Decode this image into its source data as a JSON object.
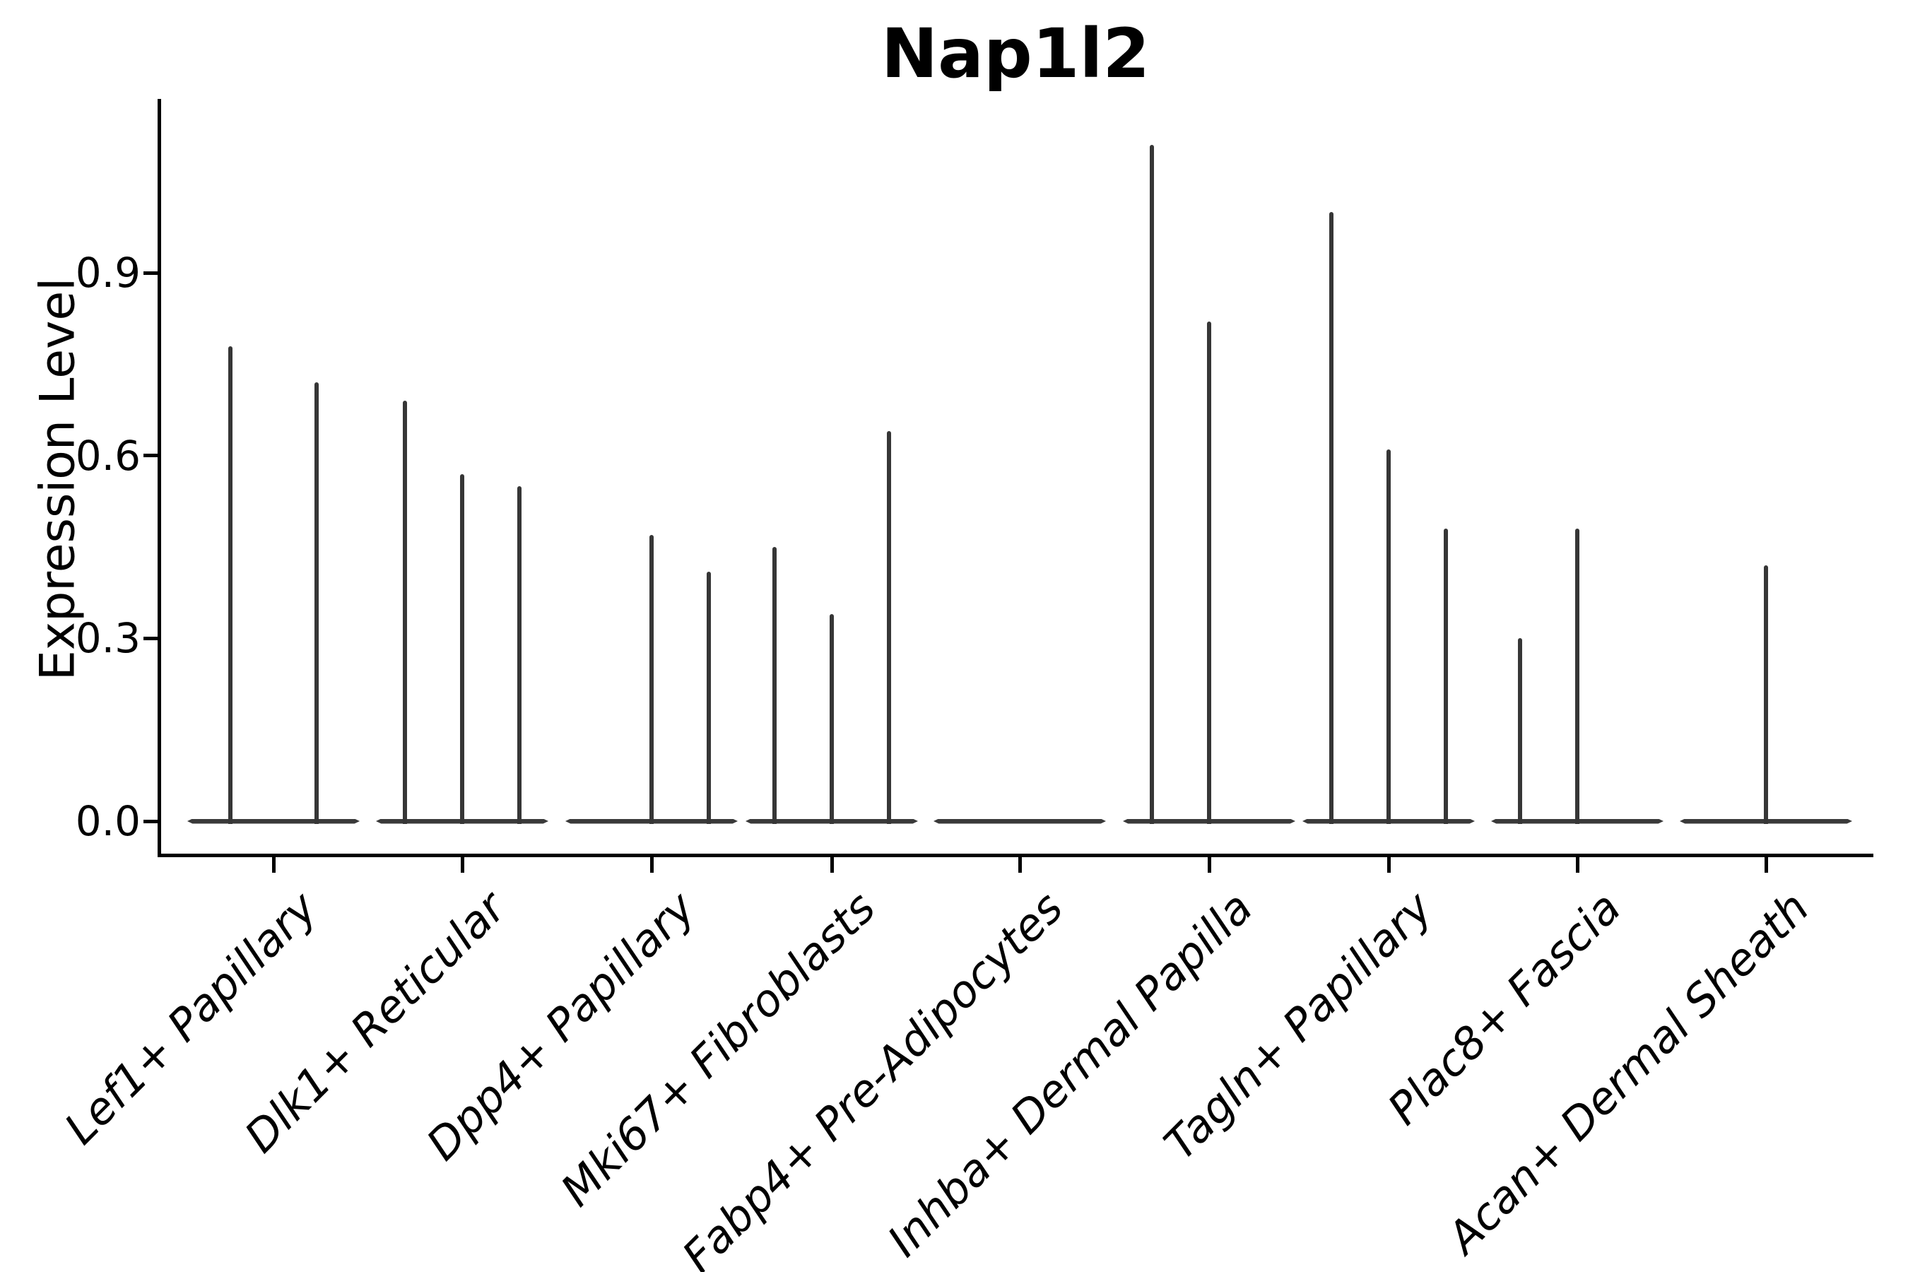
{
  "title": "Nap1l2",
  "y_axis": {
    "label": "Expression Level",
    "tick_labels": [
      "0.0",
      "0.3",
      "0.6",
      "0.9"
    ]
  },
  "colors": {
    "background": "#ffffff",
    "axis": "#000000",
    "text": "#000000",
    "violin": "#3a3a3a"
  },
  "chart_data": {
    "type": "violin",
    "title": "Nap1l2",
    "xlabel": "",
    "ylabel": "Expression Level",
    "ylim": [
      -0.06,
      1.19
    ],
    "yticks": [
      0.0,
      0.3,
      0.6,
      0.9
    ],
    "grid": false,
    "legend": false,
    "x_tick_rotation": -45,
    "categories": [
      "Lef1+ Papillary",
      "Dlk1+ Reticular",
      "Dpp4+ Papillary",
      "Mki67+ Fibroblasts",
      "Fabp4+ Pre-Adipocytes",
      "Inhba+ Dermal Papilla",
      "Tagln+ Papillary",
      "Plac8+ Fascia",
      "Acan+ Dermal Sheath"
    ],
    "note": "Each category shows extremely narrow violins: a flat zero-density base plus thin spikes reaching each violin's maximum expression value. dx = horizontal offset (px) of each violin center within its group.",
    "series": [
      {
        "category": "Lef1+ Papillary",
        "violins": [
          {
            "dx": -61,
            "max": 0.78
          },
          {
            "dx": 61,
            "max": 0.72
          }
        ]
      },
      {
        "category": "Dlk1+ Reticular",
        "violins": [
          {
            "dx": -81,
            "max": 0.69
          },
          {
            "dx": 0,
            "max": 0.57
          },
          {
            "dx": 81,
            "max": 0.55
          }
        ]
      },
      {
        "category": "Dpp4+ Papillary",
        "violins": [
          {
            "dx": 0,
            "max": 0.47
          },
          {
            "dx": 81,
            "max": 0.41
          }
        ]
      },
      {
        "category": "Mki67+ Fibroblasts",
        "violins": [
          {
            "dx": -81,
            "max": 0.45
          },
          {
            "dx": 0,
            "max": 0.34
          },
          {
            "dx": 81,
            "max": 0.64
          }
        ]
      },
      {
        "category": "Fabp4+ Pre-Adipocytes",
        "violins": []
      },
      {
        "category": "Inhba+ Dermal Papilla",
        "violins": [
          {
            "dx": -81,
            "max": 1.11
          },
          {
            "dx": 0,
            "max": 0.82
          }
        ]
      },
      {
        "category": "Tagln+ Papillary",
        "violins": [
          {
            "dx": -81,
            "max": 1.0
          },
          {
            "dx": 0,
            "max": 0.61
          },
          {
            "dx": 81,
            "max": 0.48
          }
        ]
      },
      {
        "category": "Plac8+ Fascia",
        "violins": [
          {
            "dx": -81,
            "max": 0.3
          },
          {
            "dx": 0,
            "max": 0.48
          }
        ]
      },
      {
        "category": "Acan+ Dermal Sheath",
        "violins": [
          {
            "dx": 0,
            "max": 0.42
          }
        ]
      }
    ]
  }
}
